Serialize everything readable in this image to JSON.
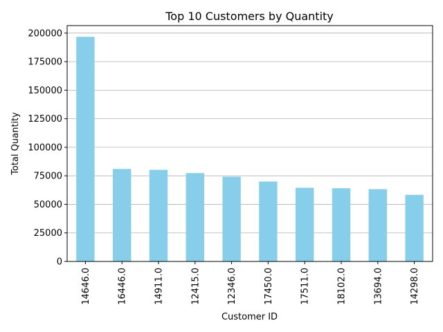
{
  "chart_data": {
    "type": "bar",
    "title": "Top 10 Customers by Quantity",
    "xlabel": "Customer ID",
    "ylabel": "Total Quantity",
    "categories": [
      "14646.0",
      "16446.0",
      "14911.0",
      "12415.0",
      "12346.0",
      "17450.0",
      "17511.0",
      "18102.0",
      "13694.0",
      "14298.0"
    ],
    "values": [
      196719,
      80997,
      80265,
      77374,
      74215,
      69993,
      64549,
      64124,
      63312,
      58343
    ],
    "ylim": [
      0,
      206555
    ],
    "yticks": [
      0,
      25000,
      50000,
      75000,
      100000,
      125000,
      150000,
      175000,
      200000
    ],
    "ytick_labels": [
      "0",
      "25000",
      "50000",
      "75000",
      "100000",
      "125000",
      "150000",
      "175000",
      "200000"
    ],
    "grid": "y",
    "bar_color": "#87ceeb",
    "grid_color": "#b0b0b0"
  }
}
